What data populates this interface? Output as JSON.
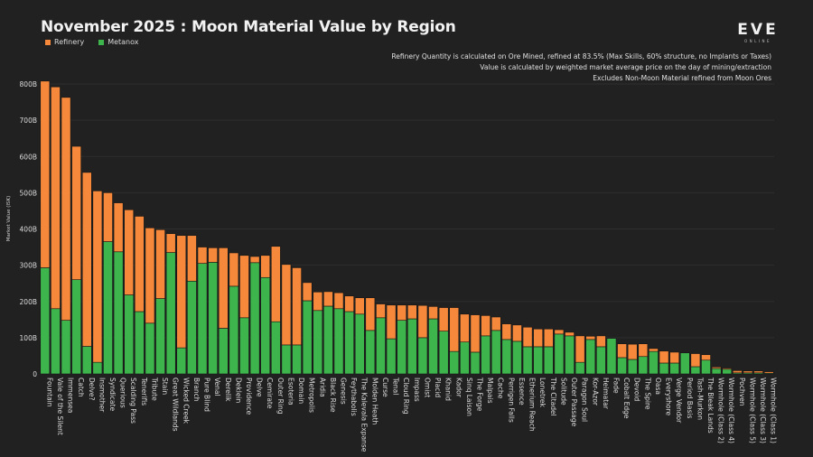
{
  "header": {
    "title": "November 2025 : Moon Material Value by Region",
    "logo_main": "EVE",
    "logo_sub": "ONLINE",
    "notes": [
      "Refinery Quantity is calculated on Ore Mined, refined at 83.5% (Max Skills, 60% structure, no Implants or Taxes)",
      "Value is calculated by weighted market average price on the day of mining/extraction",
      "Excludes Non-Moon Material refined from Moon Ores"
    ]
  },
  "colors": {
    "refinery": "#f5883a",
    "metanox": "#3db54c",
    "background": "#212121",
    "grid": "#2e2e2e"
  },
  "chart_data": {
    "type": "bar",
    "stacked": true,
    "title": "November 2025 : Moon Material Value by Region",
    "xlabel": "",
    "ylabel": "Market Value (ISK)",
    "ylim": [
      0,
      810
    ],
    "yticks": [
      0,
      100,
      200,
      300,
      400,
      500,
      600,
      700,
      800
    ],
    "ytick_labels": [
      "0",
      "100B",
      "200B",
      "300B",
      "400B",
      "500B",
      "600B",
      "700B",
      "800B"
    ],
    "grid": true,
    "legend": {
      "position": "top-left",
      "entries": [
        "Refinery",
        "Metanox"
      ]
    },
    "categories": [
      "Fountain",
      "Vale of the Silent",
      "Immensea",
      "Catch",
      "Delve?",
      "Insmother",
      "Syndicate",
      "Querious",
      "Scalding Pass",
      "Tenerifis",
      "Tribute",
      "Stain",
      "Great Wildlands",
      "Wicked Creek",
      "Branch",
      "Pure Blind",
      "Venal",
      "Derelik",
      "Deklein",
      "Providence",
      "Delve",
      "Cemirate",
      "Outer Ring",
      "Esoteria",
      "Domain",
      "Metropolis",
      "Aridia",
      "Black Rise",
      "Genesis",
      "Feythabolis",
      "The Kalevala Expanse",
      "Molden Heath",
      "Curse",
      "Tenal",
      "Cloud Ring",
      "Impass",
      "Omist",
      "Placid",
      "Khanid",
      "Kador",
      "Sinq Laison",
      "The Forge",
      "Malpais",
      "Cache",
      "Perrigen Falls",
      "Essence",
      "Etherium Reach",
      "Lonetrek",
      "The Citadel",
      "Solitude",
      "Outer Passage",
      "Paragon Soul",
      "Kor-Azor",
      "Heimatar",
      "Fade",
      "Cobalt Edge",
      "Devoid",
      "The Spire",
      "Oasa",
      "Everyshore",
      "Verge Vendor",
      "Period Basis",
      "Tash-Murkon",
      "The Bleak Lands",
      "Wormhole (Class 2)",
      "Wormhole (Class 4)",
      "Pochven",
      "Wormhole (Class 5)",
      "Wormhole (Class 3)",
      "Wormhole (Class 1)"
    ],
    "series": [
      {
        "name": "Metanox",
        "values": [
          293,
          180,
          148,
          260,
          76,
          32,
          365,
          337,
          218,
          172,
          140,
          208,
          335,
          72,
          256,
          305,
          308,
          126,
          242,
          155,
          307,
          266,
          144,
          80,
          80,
          202,
          175,
          187,
          180,
          172,
          165,
          120,
          155,
          97,
          148,
          152,
          100,
          152,
          118,
          62,
          88,
          60,
          105,
          120,
          95,
          90,
          75,
          75,
          75,
          110,
          105,
          32,
          95,
          75,
          98,
          45,
          40,
          48,
          62,
          30,
          30,
          58,
          20,
          38,
          15,
          13,
          3,
          3,
          3,
          2
        ]
      },
      {
        "name": "Refinery",
        "values": [
          515,
          612,
          615,
          368,
          480,
          473,
          135,
          135,
          235,
          263,
          263,
          190,
          52,
          310,
          126,
          45,
          40,
          222,
          92,
          172,
          17,
          61,
          208,
          222,
          213,
          50,
          51,
          40,
          44,
          43,
          45,
          90,
          38,
          93,
          42,
          38,
          89,
          34,
          65,
          121,
          77,
          103,
          56,
          37,
          43,
          45,
          54,
          49,
          49,
          12,
          10,
          73,
          9,
          30,
          0,
          38,
          42,
          35,
          8,
          33,
          30,
          0,
          36,
          15,
          4,
          3,
          6,
          5,
          5,
          4
        ]
      }
    ]
  }
}
